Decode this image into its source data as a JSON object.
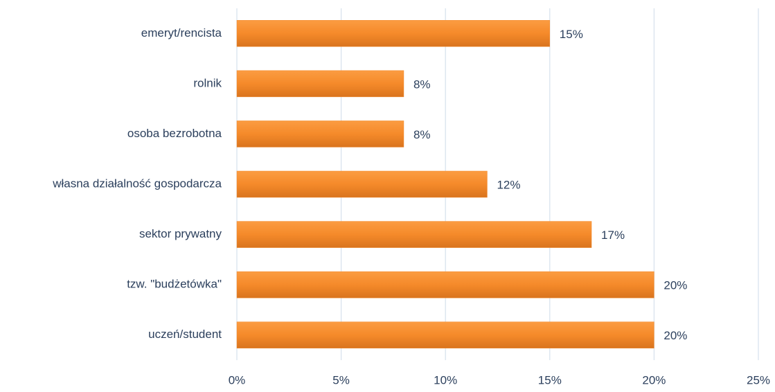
{
  "chart_data": {
    "type": "barh",
    "categories": [
      "emeryt/rencista",
      "rolnik",
      "osoba bezrobotna",
      "własna działalność gospodarcza",
      "sektor prywatny",
      "tzw. \"budżetówka\"",
      "uczeń/student"
    ],
    "values": [
      15,
      8,
      8,
      12,
      17,
      20,
      20
    ],
    "value_labels": [
      "15%",
      "8%",
      "8%",
      "12%",
      "17%",
      "20%",
      "20%"
    ],
    "color": "#f28a2e",
    "xlim": [
      0,
      25
    ],
    "xticks": [
      {
        "value": 0,
        "label": "0%"
      },
      {
        "value": 5,
        "label": "5%"
      },
      {
        "value": 10,
        "label": "10%"
      },
      {
        "value": 15,
        "label": "15%"
      },
      {
        "value": 20,
        "label": "20%"
      },
      {
        "value": 25,
        "label": "25%"
      }
    ],
    "grid": true
  }
}
